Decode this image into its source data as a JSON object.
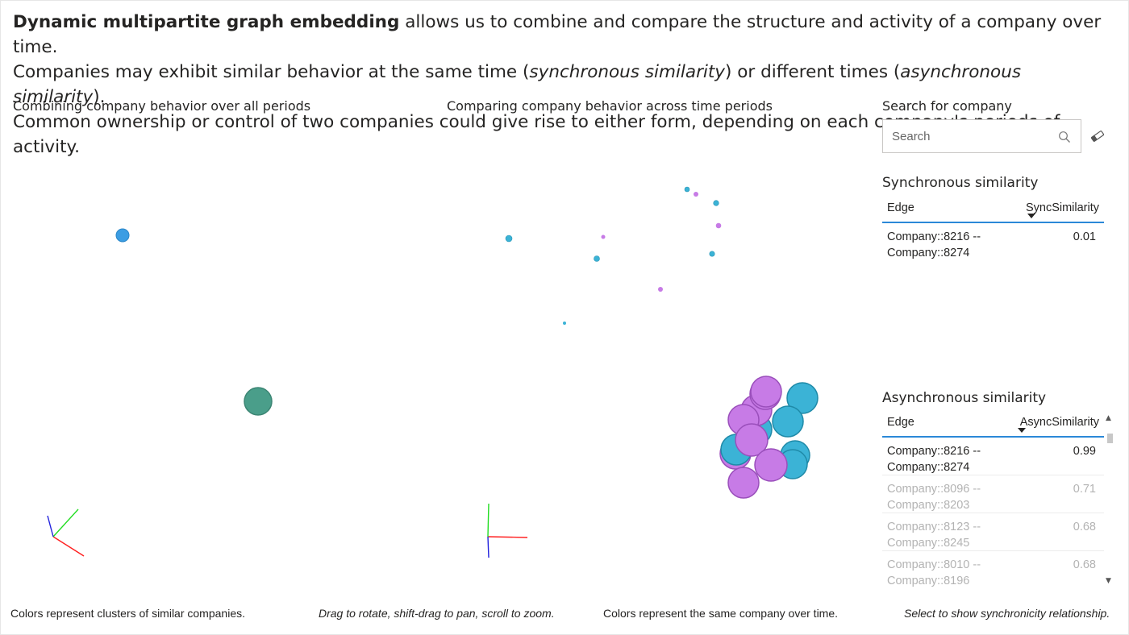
{
  "intro": {
    "bold_lead": "Dynamic multipartite graph embedding",
    "line1_rest": " allows us to combine and compare the structure and activity of a company over time.",
    "line2_a": "Companies may exhibit similar behavior at the same time (",
    "line2_sync": "synchronous similarity",
    "line2_b": ") or different times (",
    "line2_async": "asynchronous similarity",
    "line2_c": ").",
    "line3": "Common ownership or control of two companies could give rise to either form, depending on each company's periods of activity."
  },
  "left_panel": {
    "title": "Combining company behavior over all periods"
  },
  "mid_panel": {
    "title": "Comparing company behavior across time periods"
  },
  "search": {
    "title": "Search for company",
    "placeholder": "Search",
    "icon": "search-icon",
    "clear_icon": "eraser-icon"
  },
  "sync_table": {
    "title": "Synchronous similarity",
    "col_edge": "Edge",
    "col_value": "SyncSimilarity",
    "rows": [
      {
        "edge": "Company::8216 -- Company::8274",
        "value": "0.01"
      }
    ]
  },
  "async_table": {
    "title": "Asynchronous similarity",
    "col_edge": "Edge",
    "col_value": "AsyncSimilarity",
    "rows": [
      {
        "edge": "Company::8216 -- Company::8274",
        "value": "0.99"
      },
      {
        "edge": "Company::8096 -- Company::8203",
        "value": "0.71"
      },
      {
        "edge": "Company::8123 -- Company::8245",
        "value": "0.68"
      },
      {
        "edge": "Company::8010 -- Company::8196",
        "value": "0.68"
      }
    ]
  },
  "captions": {
    "left": "Colors represent clusters of similar companies.",
    "controls": "Drag to rotate, shift-drag to pan, scroll to zoom.",
    "mid": "Colors represent the same company over time.",
    "right": "Select to show synchronicity relationship."
  },
  "colors": {
    "cyan": "#3bb3d6",
    "purple": "#c77be6",
    "blue": "#3b9de3",
    "teal": "#4a9e8a",
    "axis_x": "#ff2020",
    "axis_y": "#22dd22",
    "axis_z": "#2222dd",
    "accent": "#2b88d8"
  }
}
